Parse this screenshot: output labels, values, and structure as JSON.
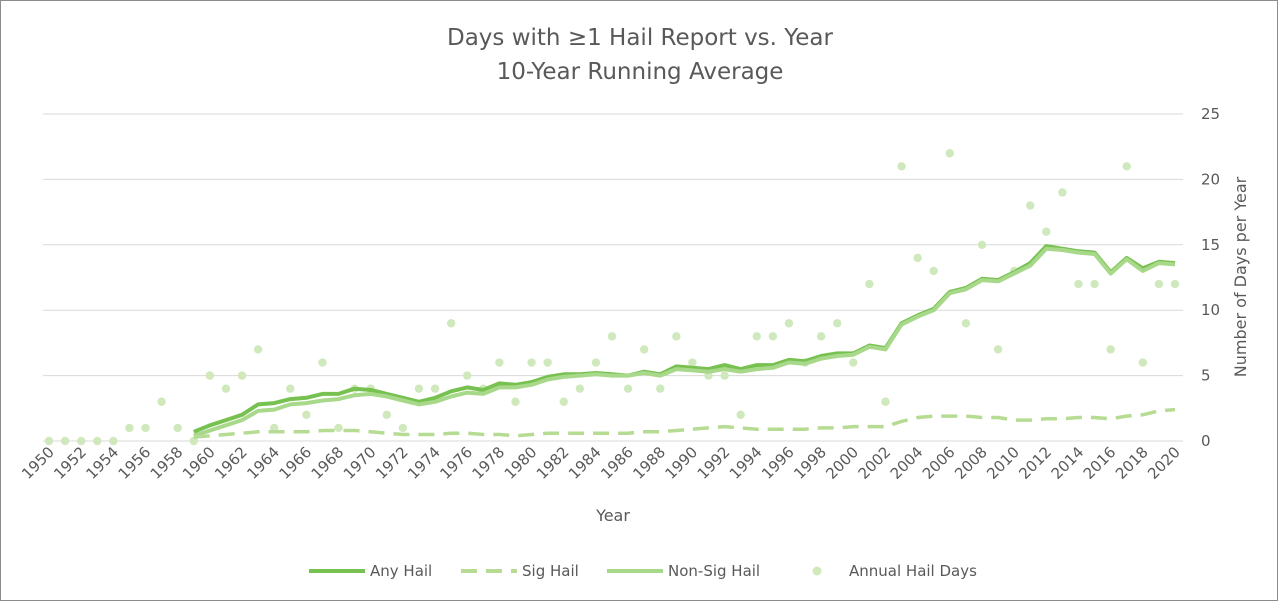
{
  "chart_data": {
    "type": "line",
    "title": "Days with ≥1 Hail Report vs. Year",
    "subtitle": "10-Year Running Average",
    "xlabel": "Year",
    "ylabel": "Number of Days per Year",
    "xlim": [
      1950,
      2020
    ],
    "ylim": [
      0,
      25
    ],
    "y_ticks": [
      0,
      5,
      10,
      15,
      20,
      25
    ],
    "x_ticks": [
      1950,
      1952,
      1954,
      1956,
      1958,
      1960,
      1962,
      1964,
      1966,
      1968,
      1970,
      1972,
      1974,
      1976,
      1978,
      1980,
      1982,
      1984,
      1986,
      1988,
      1990,
      1992,
      1994,
      1996,
      1998,
      2000,
      2002,
      2004,
      2006,
      2008,
      2010,
      2012,
      2014,
      2016,
      2018,
      2020
    ],
    "grid": "horizontal",
    "legend_position": "bottom",
    "colors": {
      "any_hail": "#77c150",
      "sig_hail": "#b6dc93",
      "non_sig_hail": "#a8d88a",
      "annual_hail_days": "#cfe8bc"
    },
    "series": [
      {
        "name": "Any Hail",
        "style": "solid",
        "x": [
          1959,
          1960,
          1961,
          1962,
          1963,
          1964,
          1965,
          1966,
          1967,
          1968,
          1969,
          1970,
          1971,
          1972,
          1973,
          1974,
          1975,
          1976,
          1977,
          1978,
          1979,
          1980,
          1981,
          1982,
          1983,
          1984,
          1985,
          1986,
          1987,
          1988,
          1989,
          1990,
          1991,
          1992,
          1993,
          1994,
          1995,
          1996,
          1997,
          1998,
          1999,
          2000,
          2001,
          2002,
          2003,
          2004,
          2005,
          2006,
          2007,
          2008,
          2009,
          2010,
          2011,
          2012,
          2013,
          2014,
          2015,
          2016,
          2017,
          2018,
          2019,
          2020
        ],
        "values": [
          0.7,
          1.2,
          1.6,
          2.0,
          2.8,
          2.9,
          3.2,
          3.3,
          3.6,
          3.6,
          4.0,
          3.9,
          3.6,
          3.3,
          3.0,
          3.3,
          3.8,
          4.1,
          3.9,
          4.4,
          4.3,
          4.5,
          4.9,
          5.1,
          5.1,
          5.2,
          5.1,
          5.0,
          5.3,
          5.1,
          5.7,
          5.6,
          5.5,
          5.8,
          5.5,
          5.8,
          5.8,
          6.2,
          6.1,
          6.5,
          6.7,
          6.7,
          7.3,
          7.1,
          9.0,
          9.6,
          10.1,
          11.4,
          11.7,
          12.4,
          12.3,
          12.9,
          13.6,
          14.9,
          14.7,
          14.5,
          14.4,
          12.9,
          14.0,
          13.2,
          13.7,
          13.6
        ]
      },
      {
        "name": "Sig Hail",
        "style": "dashed",
        "x": [
          1959,
          1960,
          1961,
          1962,
          1963,
          1964,
          1965,
          1966,
          1967,
          1968,
          1969,
          1970,
          1971,
          1972,
          1973,
          1974,
          1975,
          1976,
          1977,
          1978,
          1979,
          1980,
          1981,
          1982,
          1983,
          1984,
          1985,
          1986,
          1987,
          1988,
          1989,
          1990,
          1991,
          1992,
          1993,
          1994,
          1995,
          1996,
          1997,
          1998,
          1999,
          2000,
          2001,
          2002,
          2003,
          2004,
          2005,
          2006,
          2007,
          2008,
          2009,
          2010,
          2011,
          2012,
          2013,
          2014,
          2015,
          2016,
          2017,
          2018,
          2019,
          2020
        ],
        "values": [
          0.3,
          0.4,
          0.5,
          0.6,
          0.7,
          0.7,
          0.7,
          0.7,
          0.8,
          0.8,
          0.8,
          0.7,
          0.6,
          0.5,
          0.5,
          0.5,
          0.6,
          0.6,
          0.5,
          0.5,
          0.4,
          0.5,
          0.6,
          0.6,
          0.6,
          0.6,
          0.6,
          0.6,
          0.7,
          0.7,
          0.8,
          0.9,
          1.0,
          1.1,
          1.0,
          0.9,
          0.9,
          0.9,
          0.9,
          1.0,
          1.0,
          1.1,
          1.1,
          1.1,
          1.5,
          1.8,
          1.9,
          1.9,
          1.9,
          1.8,
          1.8,
          1.6,
          1.6,
          1.7,
          1.7,
          1.8,
          1.8,
          1.7,
          1.9,
          2.0,
          2.3,
          2.4
        ]
      },
      {
        "name": "Non-Sig Hail",
        "style": "solid",
        "x": [
          1959,
          1960,
          1961,
          1962,
          1963,
          1964,
          1965,
          1966,
          1967,
          1968,
          1969,
          1970,
          1971,
          1972,
          1973,
          1974,
          1975,
          1976,
          1977,
          1978,
          1979,
          1980,
          1981,
          1982,
          1983,
          1984,
          1985,
          1986,
          1987,
          1988,
          1989,
          1990,
          1991,
          1992,
          1993,
          1994,
          1995,
          1996,
          1997,
          1998,
          1999,
          2000,
          2001,
          2002,
          2003,
          2004,
          2005,
          2006,
          2007,
          2008,
          2009,
          2010,
          2011,
          2012,
          2013,
          2014,
          2015,
          2016,
          2017,
          2018,
          2019,
          2020
        ],
        "values": [
          0.4,
          0.8,
          1.2,
          1.6,
          2.3,
          2.4,
          2.8,
          2.9,
          3.1,
          3.2,
          3.5,
          3.6,
          3.4,
          3.1,
          2.8,
          3.0,
          3.4,
          3.7,
          3.6,
          4.1,
          4.1,
          4.3,
          4.7,
          4.9,
          5.0,
          5.1,
          5.0,
          5.0,
          5.2,
          5.0,
          5.5,
          5.4,
          5.3,
          5.5,
          5.3,
          5.5,
          5.6,
          6.0,
          5.9,
          6.3,
          6.5,
          6.6,
          7.2,
          7.0,
          8.9,
          9.5,
          10.0,
          11.3,
          11.6,
          12.3,
          12.2,
          12.8,
          13.4,
          14.7,
          14.6,
          14.4,
          14.3,
          12.8,
          13.9,
          13.0,
          13.6,
          13.5
        ]
      },
      {
        "name": "Annual Hail Days",
        "style": "markers",
        "x": [
          1950,
          1951,
          1952,
          1953,
          1954,
          1955,
          1956,
          1957,
          1958,
          1959,
          1960,
          1961,
          1962,
          1963,
          1964,
          1965,
          1966,
          1967,
          1968,
          1969,
          1970,
          1971,
          1972,
          1973,
          1974,
          1975,
          1976,
          1977,
          1978,
          1979,
          1980,
          1981,
          1982,
          1983,
          1984,
          1985,
          1986,
          1987,
          1988,
          1989,
          1990,
          1991,
          1992,
          1993,
          1994,
          1995,
          1996,
          1997,
          1998,
          1999,
          2000,
          2001,
          2002,
          2003,
          2004,
          2005,
          2006,
          2007,
          2008,
          2009,
          2010,
          2011,
          2012,
          2013,
          2014,
          2015,
          2016,
          2017,
          2018,
          2019,
          2020
        ],
        "values": [
          0,
          0,
          0,
          0,
          0,
          1,
          1,
          3,
          1,
          0,
          5,
          4,
          5,
          7,
          1,
          4,
          2,
          6,
          1,
          4,
          4,
          2,
          1,
          4,
          4,
          9,
          5,
          4,
          6,
          3,
          6,
          6,
          3,
          4,
          6,
          8,
          4,
          7,
          4,
          8,
          6,
          5,
          5,
          2,
          8,
          8,
          9,
          6,
          8,
          9,
          6,
          12,
          3,
          21,
          14,
          13,
          22,
          9,
          15,
          7,
          13,
          18,
          16,
          19,
          12,
          12,
          7,
          21,
          6,
          12,
          12
        ]
      }
    ]
  }
}
